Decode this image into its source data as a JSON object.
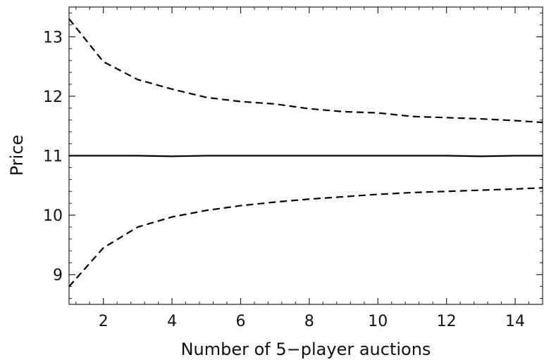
{
  "chart_data": {
    "type": "line",
    "xlabel": "Number of 5−player auctions",
    "ylabel": "Price",
    "xlim": [
      1,
      14.8
    ],
    "ylim": [
      8.5,
      13.5
    ],
    "x_ticks": [
      2,
      4,
      6,
      8,
      10,
      12,
      14
    ],
    "x_tick_labels": [
      "2",
      "4",
      "6",
      "8",
      "10",
      "12",
      "14"
    ],
    "y_ticks": [
      9,
      10,
      11,
      12,
      13
    ],
    "y_tick_labels": [
      "9",
      "10",
      "11",
      "12",
      "13"
    ],
    "grid": false,
    "frame": true,
    "series": [
      {
        "style": "solid",
        "x": [
          1,
          2,
          3,
          4,
          5,
          6,
          7,
          8,
          9,
          10,
          11,
          12,
          13,
          14,
          14.8
        ],
        "y": [
          11.0,
          11.0,
          11.0,
          10.99,
          11.0,
          11.0,
          11.0,
          11.0,
          11.0,
          11.0,
          11.0,
          11.0,
          10.99,
          11.0,
          11.0
        ]
      },
      {
        "style": "dashed",
        "x": [
          1,
          2,
          3,
          4,
          5,
          6,
          7,
          8,
          9,
          10,
          11,
          12,
          13,
          14,
          14.8
        ],
        "y": [
          13.3,
          12.58,
          12.28,
          12.12,
          11.98,
          11.91,
          11.87,
          11.79,
          11.74,
          11.72,
          11.66,
          11.64,
          11.62,
          11.59,
          11.56
        ]
      },
      {
        "style": "dashed",
        "x": [
          1,
          2,
          3,
          4,
          5,
          6,
          7,
          8,
          9,
          10,
          11,
          12,
          13,
          14,
          14.8
        ],
        "y": [
          8.8,
          9.45,
          9.8,
          9.97,
          10.08,
          10.16,
          10.22,
          10.27,
          10.31,
          10.35,
          10.38,
          10.4,
          10.42,
          10.44,
          10.46
        ]
      }
    ]
  }
}
